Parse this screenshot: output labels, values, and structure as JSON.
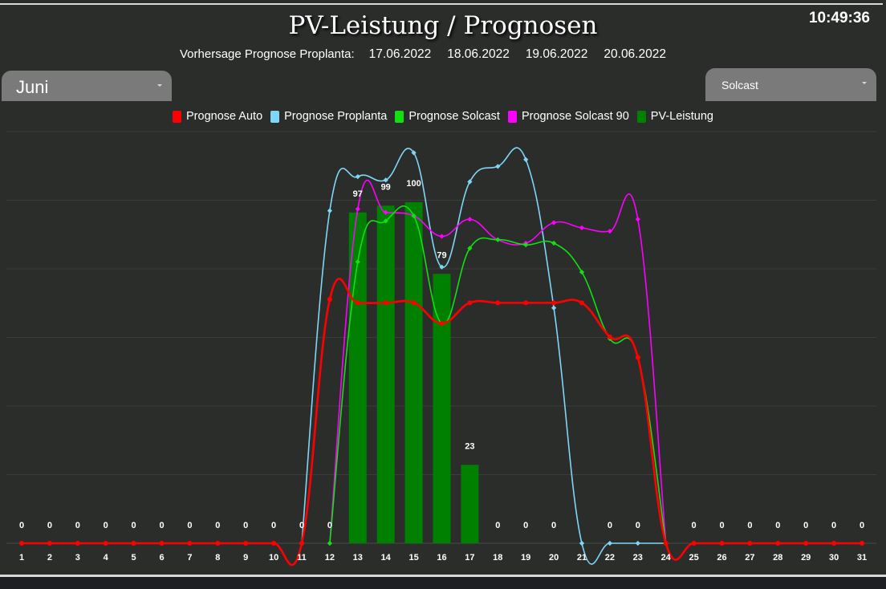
{
  "header": {
    "title": "PV-Leistung / Prognosen",
    "clock": "10:49:36",
    "forecast_label": "Vorhersage Prognose Proplanta:",
    "forecast_dates": [
      "17.06.2022",
      "18.06.2022",
      "19.06.2022",
      "20.06.2022"
    ]
  },
  "controls": {
    "month_select": "Juni",
    "source_select": "Solcast"
  },
  "colors": {
    "prognose_auto": "#ff0000",
    "prognose_proplanta": "#7fd6f7",
    "prognose_solcast": "#11e011",
    "prognose_solcast_90": "#ff00ff",
    "pv_leistung": "#008000"
  },
  "chart_data": {
    "type": "bar",
    "categories": [
      "1",
      "2",
      "3",
      "4",
      "5",
      "6",
      "7",
      "8",
      "9",
      "10",
      "11",
      "12",
      "13",
      "14",
      "15",
      "16",
      "17",
      "18",
      "19",
      "20",
      "21",
      "22",
      "23",
      "24",
      "25",
      "26",
      "27",
      "28",
      "29",
      "30",
      "31"
    ],
    "ylim": [
      0,
      120
    ],
    "grid": true,
    "legend_position": "top-center",
    "series": [
      {
        "name": "Prognose Auto",
        "kind": "line",
        "color_key": "prognose_auto",
        "values": [
          0,
          0,
          0,
          0,
          0,
          0,
          0,
          0,
          0,
          0,
          0,
          71.5,
          70.5,
          70.5,
          70.5,
          64.5,
          70.5,
          70.5,
          70.5,
          70.5,
          70.5,
          60.5,
          54.5,
          0,
          0,
          0,
          0,
          0,
          0,
          0,
          0
        ]
      },
      {
        "name": "Prognose Proplanta",
        "kind": "line",
        "color_key": "prognose_proplanta",
        "values": [
          null,
          null,
          null,
          null,
          null,
          null,
          null,
          null,
          null,
          null,
          0,
          97.5,
          107.5,
          106.5,
          114.5,
          81,
          106,
          110.5,
          112.5,
          69,
          0,
          0,
          0,
          0,
          null,
          null,
          null,
          null,
          null,
          null,
          null
        ]
      },
      {
        "name": "Prognose Solcast",
        "kind": "line",
        "color_key": "prognose_solcast",
        "values": [
          null,
          null,
          null,
          null,
          null,
          null,
          null,
          null,
          null,
          null,
          null,
          0,
          82.5,
          94.5,
          96,
          64.5,
          86.5,
          89,
          87.5,
          88,
          79.5,
          60,
          54.5,
          0,
          null,
          null,
          null,
          null,
          null,
          null,
          null
        ]
      },
      {
        "name": "Prognose Solcast 90",
        "kind": "line",
        "color_key": "prognose_solcast_90",
        "values": [
          null,
          null,
          null,
          null,
          null,
          null,
          null,
          null,
          null,
          null,
          null,
          0,
          98,
          97,
          96,
          90,
          95,
          89,
          88,
          94,
          92.5,
          91.5,
          95,
          0,
          null,
          null,
          null,
          null,
          null,
          null,
          null
        ]
      },
      {
        "name": "PV-Leistung",
        "kind": "bar",
        "color_key": "pv_leistung",
        "values": [
          0,
          0,
          0,
          0,
          0,
          0,
          0,
          0,
          0,
          0,
          0,
          0,
          97,
          99,
          100,
          79,
          23,
          0,
          0,
          0,
          0,
          0,
          0,
          0,
          0,
          0,
          0,
          0,
          0,
          0,
          0
        ],
        "data_labels": [
          "0",
          "0",
          "0",
          "0",
          "0",
          "0",
          "0",
          "0",
          "0",
          "0",
          "0",
          "0",
          "97",
          "99",
          "100",
          "79",
          "23",
          "0",
          "0",
          "0",
          "",
          "0",
          "0",
          "",
          "0",
          "0",
          "0",
          "0",
          "0",
          "0",
          "0"
        ]
      }
    ]
  }
}
